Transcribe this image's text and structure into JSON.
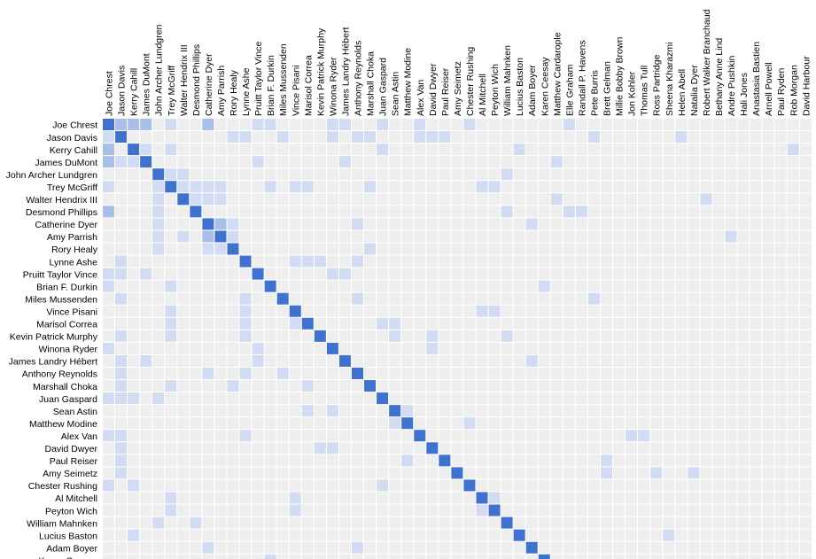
{
  "chart_data": {
    "type": "heatmap",
    "colors": {
      "background_cell": "#eeeeee",
      "high": "#3f72cf",
      "medium": "#a9bfe8",
      "low": "#d1dcf2"
    },
    "columns": [
      "Joe Chrest",
      "Jason Davis",
      "Kerry Cahill",
      "James DuMont",
      "John Archer Lundgren",
      "Trey McGriff",
      "Walter Hendrix III",
      "Desmond Phillips",
      "Catherine Dyer",
      "Amy Parrish",
      "Rory Healy",
      "Lynne Ashe",
      "Pruitt Taylor Vince",
      "Brian F. Durkin",
      "Miles Mussenden",
      "Vince Pisani",
      "Marisol Correa",
      "Kevin Patrick Murphy",
      "Winona Ryder",
      "James Landry Hébert",
      "Anthony Reynolds",
      "Marshall Choka",
      "Juan Gaspard",
      "Sean Astin",
      "Matthew Modine",
      "Alex Van",
      "David Dwyer",
      "Paul Reiser",
      "Amy Seimetz",
      "Chester Rushing",
      "Al Mitchell",
      "Peyton Wich",
      "William Mahnken",
      "Lucius Baston",
      "Adam Boyer",
      "Karen Ceesay",
      "Matthew Cardarople",
      "Elle Graham",
      "Randall P. Havens",
      "Pete Burris",
      "Brett Gelman",
      "Millie Bobby Brown",
      "Jon Kohler",
      "Thomas Tull",
      "Ross Partridge",
      "Sheena Kharazmi",
      "Helen Abell",
      "Natalia Dyer",
      "Robert Walker Branchaud",
      "Bethany Anne Lind",
      "Andre Pushkin",
      "Hali Jones",
      "Anastasia Bastien",
      "Arnell Powell",
      "Paul Ryden",
      "Rob Morgan",
      "David Harbour"
    ],
    "rows": [
      "Joe Chrest",
      "Jason Davis",
      "Kerry Cahill",
      "James DuMont",
      "John Archer Lundgren",
      "Trey McGriff",
      "Walter Hendrix III",
      "Desmond Phillips",
      "Catherine Dyer",
      "Amy Parrish",
      "Rory Healy",
      "Lynne Ashe",
      "Pruitt Taylor Vince",
      "Brian F. Durkin",
      "Miles Mussenden",
      "Vince Pisani",
      "Marisol Correa",
      "Kevin Patrick Murphy",
      "Winona Ryder",
      "James Landry Hébert",
      "Anthony Reynolds",
      "Marshall Choka",
      "Juan Gaspard",
      "Sean Astin",
      "Matthew Modine",
      "Alex Van",
      "David Dwyer",
      "Paul Reiser",
      "Amy Seimetz",
      "Chester Rushing",
      "Al Mitchell",
      "Peyton Wich",
      "William Mahnken",
      "Lucius Baston",
      "Adam Boyer",
      "Karen Ceesay"
    ],
    "cells": [
      [
        0,
        0,
        3
      ],
      [
        0,
        1,
        2
      ],
      [
        0,
        2,
        2
      ],
      [
        0,
        3,
        2
      ],
      [
        0,
        5,
        1
      ],
      [
        0,
        8,
        2
      ],
      [
        0,
        12,
        1
      ],
      [
        0,
        13,
        1
      ],
      [
        0,
        18,
        1
      ],
      [
        0,
        19,
        1
      ],
      [
        0,
        22,
        1
      ],
      [
        0,
        25,
        1
      ],
      [
        0,
        29,
        1
      ],
      [
        0,
        37,
        1
      ],
      [
        1,
        0,
        1
      ],
      [
        1,
        1,
        3
      ],
      [
        1,
        10,
        1
      ],
      [
        1,
        11,
        1
      ],
      [
        1,
        14,
        1
      ],
      [
        1,
        18,
        1
      ],
      [
        1,
        20,
        1
      ],
      [
        1,
        21,
        1
      ],
      [
        1,
        25,
        1
      ],
      [
        1,
        26,
        1
      ],
      [
        1,
        27,
        1
      ],
      [
        1,
        39,
        1
      ],
      [
        1,
        46,
        1
      ],
      [
        2,
        0,
        2
      ],
      [
        2,
        2,
        3
      ],
      [
        2,
        3,
        1
      ],
      [
        2,
        5,
        1
      ],
      [
        2,
        22,
        1
      ],
      [
        2,
        33,
        1
      ],
      [
        2,
        55,
        1
      ],
      [
        3,
        0,
        2
      ],
      [
        3,
        1,
        1
      ],
      [
        3,
        2,
        1
      ],
      [
        3,
        3,
        3
      ],
      [
        3,
        12,
        1
      ],
      [
        3,
        19,
        1
      ],
      [
        3,
        36,
        1
      ],
      [
        4,
        4,
        3
      ],
      [
        4,
        5,
        1
      ],
      [
        4,
        6,
        1
      ],
      [
        4,
        32,
        1
      ],
      [
        5,
        0,
        1
      ],
      [
        5,
        4,
        1
      ],
      [
        5,
        5,
        3
      ],
      [
        5,
        6,
        1
      ],
      [
        5,
        7,
        1
      ],
      [
        5,
        8,
        1
      ],
      [
        5,
        9,
        1
      ],
      [
        5,
        13,
        1
      ],
      [
        5,
        15,
        1
      ],
      [
        5,
        16,
        1
      ],
      [
        5,
        21,
        1
      ],
      [
        5,
        30,
        1
      ],
      [
        5,
        31,
        1
      ],
      [
        6,
        4,
        1
      ],
      [
        6,
        6,
        3
      ],
      [
        6,
        7,
        1
      ],
      [
        6,
        8,
        1
      ],
      [
        6,
        9,
        1
      ],
      [
        6,
        36,
        1
      ],
      [
        6,
        48,
        1
      ],
      [
        7,
        0,
        2
      ],
      [
        7,
        4,
        1
      ],
      [
        7,
        7,
        3
      ],
      [
        7,
        32,
        1
      ],
      [
        7,
        37,
        1
      ],
      [
        7,
        38,
        1
      ],
      [
        8,
        4,
        1
      ],
      [
        8,
        8,
        3
      ],
      [
        8,
        9,
        2
      ],
      [
        8,
        10,
        1
      ],
      [
        8,
        20,
        1
      ],
      [
        8,
        34,
        1
      ],
      [
        9,
        4,
        1
      ],
      [
        9,
        6,
        1
      ],
      [
        9,
        8,
        2
      ],
      [
        9,
        9,
        3
      ],
      [
        9,
        10,
        1
      ],
      [
        9,
        50,
        1
      ],
      [
        10,
        4,
        1
      ],
      [
        10,
        8,
        1
      ],
      [
        10,
        9,
        1
      ],
      [
        10,
        10,
        3
      ],
      [
        10,
        21,
        1
      ],
      [
        11,
        1,
        1
      ],
      [
        11,
        11,
        3
      ],
      [
        11,
        15,
        1
      ],
      [
        11,
        16,
        1
      ],
      [
        11,
        17,
        1
      ],
      [
        11,
        20,
        1
      ],
      [
        12,
        0,
        1
      ],
      [
        12,
        1,
        1
      ],
      [
        12,
        3,
        1
      ],
      [
        12,
        12,
        3
      ],
      [
        12,
        18,
        1
      ],
      [
        12,
        19,
        1
      ],
      [
        13,
        0,
        1
      ],
      [
        13,
        5,
        1
      ],
      [
        13,
        13,
        3
      ],
      [
        13,
        35,
        1
      ],
      [
        14,
        1,
        1
      ],
      [
        14,
        11,
        1
      ],
      [
        14,
        14,
        3
      ],
      [
        14,
        20,
        1
      ],
      [
        14,
        39,
        1
      ],
      [
        15,
        5,
        1
      ],
      [
        15,
        11,
        1
      ],
      [
        15,
        15,
        3
      ],
      [
        15,
        30,
        1
      ],
      [
        15,
        31,
        1
      ],
      [
        16,
        5,
        1
      ],
      [
        16,
        11,
        1
      ],
      [
        16,
        15,
        1
      ],
      [
        16,
        16,
        3
      ],
      [
        16,
        22,
        1
      ],
      [
        16,
        23,
        1
      ],
      [
        17,
        1,
        1
      ],
      [
        17,
        5,
        1
      ],
      [
        17,
        11,
        1
      ],
      [
        17,
        17,
        3
      ],
      [
        17,
        23,
        1
      ],
      [
        17,
        26,
        1
      ],
      [
        17,
        32,
        1
      ],
      [
        18,
        0,
        1
      ],
      [
        18,
        12,
        1
      ],
      [
        18,
        18,
        3
      ],
      [
        18,
        26,
        1
      ],
      [
        19,
        1,
        1
      ],
      [
        19,
        3,
        1
      ],
      [
        19,
        12,
        1
      ],
      [
        19,
        19,
        3
      ],
      [
        19,
        34,
        1
      ],
      [
        20,
        1,
        1
      ],
      [
        20,
        8,
        1
      ],
      [
        20,
        11,
        1
      ],
      [
        20,
        14,
        1
      ],
      [
        20,
        20,
        3
      ],
      [
        21,
        1,
        1
      ],
      [
        21,
        5,
        1
      ],
      [
        21,
        10,
        1
      ],
      [
        21,
        16,
        1
      ],
      [
        21,
        21,
        3
      ],
      [
        22,
        0,
        1
      ],
      [
        22,
        1,
        1
      ],
      [
        22,
        2,
        1
      ],
      [
        22,
        4,
        1
      ],
      [
        22,
        22,
        3
      ],
      [
        23,
        16,
        1
      ],
      [
        23,
        18,
        1
      ],
      [
        23,
        23,
        3
      ],
      [
        23,
        24,
        1
      ],
      [
        24,
        23,
        1
      ],
      [
        24,
        24,
        3
      ],
      [
        24,
        29,
        1
      ],
      [
        25,
        0,
        1
      ],
      [
        25,
        1,
        1
      ],
      [
        25,
        11,
        1
      ],
      [
        25,
        25,
        3
      ],
      [
        25,
        42,
        1
      ],
      [
        25,
        43,
        1
      ],
      [
        26,
        1,
        1
      ],
      [
        26,
        17,
        1
      ],
      [
        26,
        18,
        1
      ],
      [
        26,
        26,
        3
      ],
      [
        27,
        1,
        1
      ],
      [
        27,
        24,
        1
      ],
      [
        27,
        27,
        3
      ],
      [
        27,
        40,
        1
      ],
      [
        28,
        1,
        1
      ],
      [
        28,
        28,
        3
      ],
      [
        28,
        40,
        1
      ],
      [
        28,
        44,
        1
      ],
      [
        28,
        47,
        1
      ],
      [
        29,
        0,
        1
      ],
      [
        29,
        2,
        1
      ],
      [
        29,
        22,
        1
      ],
      [
        29,
        29,
        3
      ],
      [
        30,
        5,
        1
      ],
      [
        30,
        15,
        1
      ],
      [
        30,
        30,
        3
      ],
      [
        30,
        31,
        1
      ],
      [
        31,
        5,
        1
      ],
      [
        31,
        15,
        1
      ],
      [
        31,
        30,
        1
      ],
      [
        31,
        31,
        3
      ],
      [
        32,
        4,
        1
      ],
      [
        32,
        7,
        1
      ],
      [
        32,
        32,
        3
      ],
      [
        33,
        2,
        1
      ],
      [
        33,
        33,
        3
      ],
      [
        33,
        45,
        1
      ],
      [
        34,
        8,
        1
      ],
      [
        34,
        20,
        1
      ],
      [
        34,
        34,
        3
      ],
      [
        35,
        13,
        1
      ],
      [
        35,
        35,
        3
      ]
    ]
  }
}
